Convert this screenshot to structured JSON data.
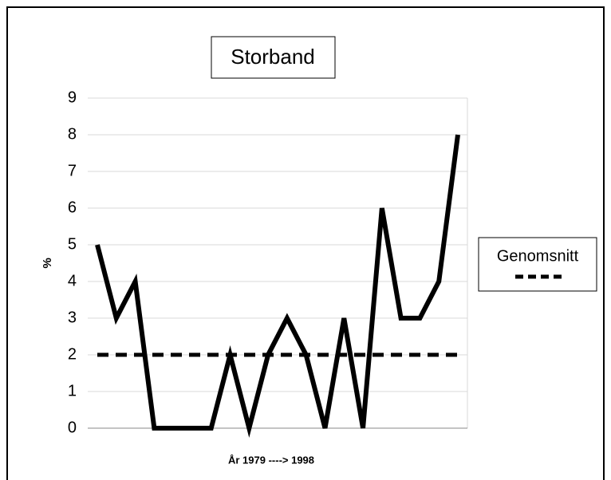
{
  "chart_data": {
    "type": "line",
    "title": "Storband",
    "ylabel": "%",
    "xlabel": "År 1979 ----> 1998",
    "ylim": [
      0,
      9
    ],
    "yticks": [
      0,
      1,
      2,
      3,
      4,
      5,
      6,
      7,
      8,
      9
    ],
    "grid": true,
    "legend": "right",
    "series": [
      {
        "color": "#000000",
        "dashed": false,
        "values": [
          5,
          3,
          4,
          0,
          0,
          0,
          0,
          2,
          0,
          2,
          3,
          2,
          0,
          3,
          0,
          6,
          3,
          3,
          4,
          8
        ]
      },
      {
        "name": "Genomsnitt",
        "color": "#000000",
        "dashed": true,
        "values": [
          2,
          2,
          2,
          2,
          2,
          2,
          2,
          2,
          2,
          2,
          2,
          2,
          2,
          2,
          2,
          2,
          2,
          2,
          2,
          2
        ]
      }
    ]
  }
}
